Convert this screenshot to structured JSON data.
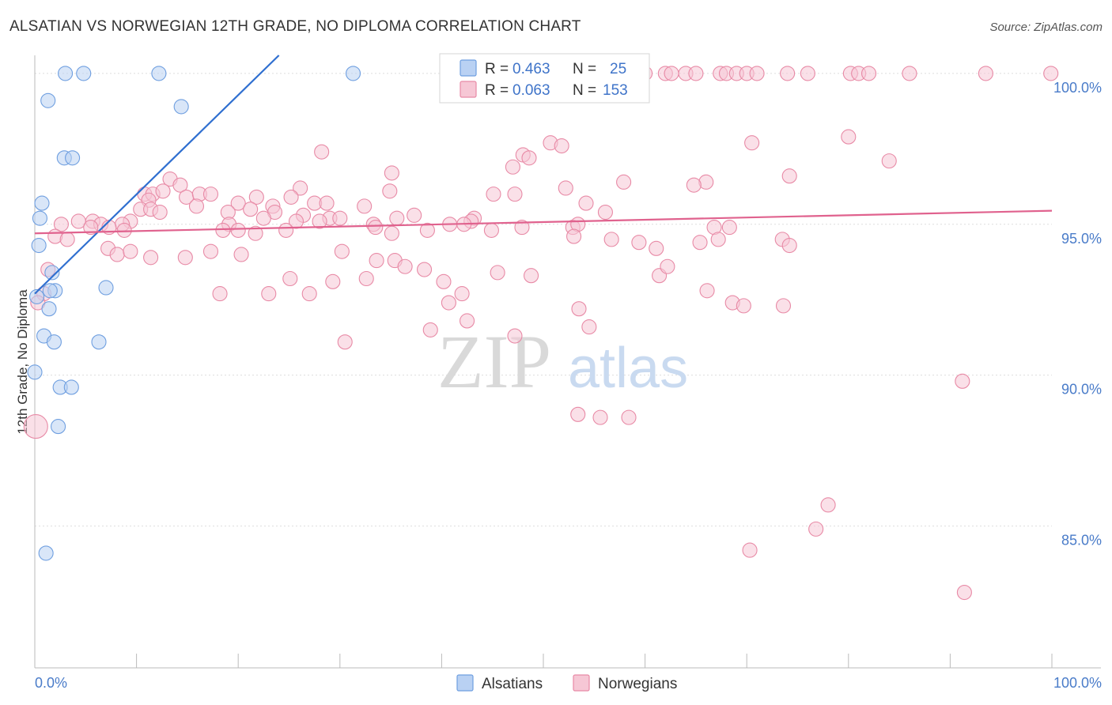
{
  "chart_data": {
    "type": "scatter",
    "title": "ALSATIAN VS NORWEGIAN 12TH GRADE, NO DIPLOMA CORRELATION CHART",
    "source": "Source: ZipAtlas.com",
    "ylabel": "12th Grade, No Diploma",
    "xlim": [
      0,
      100
    ],
    "ylim": [
      80.3,
      100.6
    ],
    "y_ticks": [
      {
        "value": 100,
        "label": "100.0%"
      },
      {
        "value": 95,
        "label": "95.0%"
      },
      {
        "value": 90,
        "label": "90.0%"
      },
      {
        "value": 85,
        "label": "85.0%"
      }
    ],
    "x_ticks": [
      {
        "value": 0,
        "label": "0.0%"
      },
      {
        "value": 100,
        "label": "100.0%"
      }
    ],
    "x_minor_ticks": [
      0,
      10,
      20,
      30,
      40,
      50,
      60,
      70,
      80,
      90,
      100
    ],
    "grid": true,
    "legend": {
      "position": "top-center",
      "rows": [
        {
          "r_label": "R = ",
          "r_value": "0.463",
          "n_label": "N = ",
          "n_value": "25"
        },
        {
          "r_label": "R = ",
          "r_value": "0.063",
          "n_label": "N = ",
          "n_value": "153"
        }
      ]
    },
    "series": [
      {
        "name": "Alsatians",
        "color": "#6f9fe0",
        "fill": "#b9d1f3",
        "line_color": "#2f6fd0",
        "trend": {
          "x0": 0,
          "y0": 92.7,
          "x1": 24.0,
          "y1": 100.6
        },
        "points": [
          [
            3.0,
            100.0
          ],
          [
            4.8,
            100.0
          ],
          [
            12.2,
            100.0
          ],
          [
            31.3,
            100.0
          ],
          [
            1.3,
            99.1
          ],
          [
            14.4,
            98.9
          ],
          [
            2.9,
            97.2
          ],
          [
            3.7,
            97.2
          ],
          [
            0.7,
            95.7
          ],
          [
            0.5,
            95.2
          ],
          [
            0.4,
            94.3
          ],
          [
            1.7,
            93.4
          ],
          [
            7.0,
            92.9
          ],
          [
            2.0,
            92.8
          ],
          [
            1.4,
            92.2
          ],
          [
            0.9,
            91.3
          ],
          [
            1.9,
            91.1
          ],
          [
            6.3,
            91.1
          ],
          [
            0.0,
            90.1
          ],
          [
            2.5,
            89.6
          ],
          [
            3.6,
            89.6
          ],
          [
            2.3,
            88.3
          ],
          [
            1.1,
            84.1
          ],
          [
            1.5,
            92.8
          ],
          [
            0.2,
            92.6
          ]
        ]
      },
      {
        "name": "Norwegians",
        "color": "#e88aa6",
        "fill": "#f6c7d5",
        "line_color": "#e0628e",
        "trend": {
          "x0": 0,
          "y0": 94.7,
          "x1": 100,
          "y1": 95.45
        },
        "points": [
          [
            60.0,
            100.0
          ],
          [
            62.0,
            100.0
          ],
          [
            62.6,
            100.0
          ],
          [
            64.0,
            100.0
          ],
          [
            65.0,
            100.0
          ],
          [
            67.4,
            100.0
          ],
          [
            68.0,
            100.0
          ],
          [
            69.0,
            100.0
          ],
          [
            70.0,
            100.0
          ],
          [
            71.0,
            100.0
          ],
          [
            74.0,
            100.0
          ],
          [
            76.0,
            100.0
          ],
          [
            80.2,
            100.0
          ],
          [
            81.0,
            100.0
          ],
          [
            82.0,
            100.0
          ],
          [
            86.0,
            100.0
          ],
          [
            93.5,
            100.0
          ],
          [
            99.9,
            100.0
          ],
          [
            80.0,
            97.9
          ],
          [
            70.5,
            97.7
          ],
          [
            50.7,
            97.7
          ],
          [
            51.8,
            97.6
          ],
          [
            28.2,
            97.4
          ],
          [
            48.0,
            97.3
          ],
          [
            48.6,
            97.2
          ],
          [
            84.0,
            97.1
          ],
          [
            47.0,
            96.9
          ],
          [
            35.1,
            96.7
          ],
          [
            74.2,
            96.6
          ],
          [
            57.9,
            96.4
          ],
          [
            66.0,
            96.4
          ],
          [
            64.8,
            96.3
          ],
          [
            13.3,
            96.5
          ],
          [
            52.2,
            96.2
          ],
          [
            14.3,
            96.3
          ],
          [
            26.1,
            96.2
          ],
          [
            34.9,
            96.1
          ],
          [
            45.1,
            96.0
          ],
          [
            47.2,
            96.0
          ],
          [
            10.8,
            96.0
          ],
          [
            11.6,
            96.0
          ],
          [
            14.9,
            95.9
          ],
          [
            16.2,
            96.0
          ],
          [
            17.3,
            96.0
          ],
          [
            12.6,
            96.1
          ],
          [
            21.8,
            95.9
          ],
          [
            25.2,
            95.9
          ],
          [
            11.2,
            95.8
          ],
          [
            20.0,
            95.7
          ],
          [
            23.4,
            95.6
          ],
          [
            27.5,
            95.7
          ],
          [
            28.7,
            95.7
          ],
          [
            32.4,
            95.6
          ],
          [
            54.2,
            95.7
          ],
          [
            56.1,
            95.4
          ],
          [
            10.4,
            95.5
          ],
          [
            11.4,
            95.5
          ],
          [
            12.3,
            95.4
          ],
          [
            15.9,
            95.6
          ],
          [
            19.0,
            95.4
          ],
          [
            21.2,
            95.5
          ],
          [
            23.6,
            95.4
          ],
          [
            22.5,
            95.2
          ],
          [
            26.4,
            95.3
          ],
          [
            29.0,
            95.2
          ],
          [
            30.0,
            95.2
          ],
          [
            35.6,
            95.2
          ],
          [
            37.3,
            95.3
          ],
          [
            43.2,
            95.2
          ],
          [
            42.9,
            95.1
          ],
          [
            4.3,
            95.1
          ],
          [
            5.7,
            95.1
          ],
          [
            6.5,
            95.0
          ],
          [
            9.4,
            95.1
          ],
          [
            8.6,
            95.0
          ],
          [
            2.6,
            95.0
          ],
          [
            19.1,
            95.0
          ],
          [
            33.3,
            95.0
          ],
          [
            28.0,
            95.1
          ],
          [
            25.7,
            95.1
          ],
          [
            40.8,
            95.0
          ],
          [
            42.2,
            95.0
          ],
          [
            47.9,
            94.9
          ],
          [
            52.9,
            94.9
          ],
          [
            53.4,
            95.0
          ],
          [
            66.8,
            94.9
          ],
          [
            68.3,
            94.9
          ],
          [
            5.5,
            94.9
          ],
          [
            7.3,
            94.9
          ],
          [
            8.8,
            94.8
          ],
          [
            18.5,
            94.8
          ],
          [
            20.0,
            94.8
          ],
          [
            21.7,
            94.7
          ],
          [
            24.7,
            94.8
          ],
          [
            35.1,
            94.7
          ],
          [
            33.5,
            94.9
          ],
          [
            38.6,
            94.8
          ],
          [
            44.9,
            94.8
          ],
          [
            53.0,
            94.6
          ],
          [
            56.7,
            94.5
          ],
          [
            59.4,
            94.4
          ],
          [
            61.1,
            94.2
          ],
          [
            65.4,
            94.4
          ],
          [
            73.5,
            94.5
          ],
          [
            74.2,
            94.3
          ],
          [
            67.2,
            94.5
          ],
          [
            2.0,
            94.6
          ],
          [
            3.2,
            94.5
          ],
          [
            7.2,
            94.2
          ],
          [
            8.1,
            94.0
          ],
          [
            9.4,
            94.1
          ],
          [
            11.4,
            93.9
          ],
          [
            14.8,
            93.9
          ],
          [
            17.3,
            94.1
          ],
          [
            20.3,
            94.0
          ],
          [
            30.2,
            94.1
          ],
          [
            33.6,
            93.8
          ],
          [
            35.4,
            93.8
          ],
          [
            36.4,
            93.6
          ],
          [
            38.3,
            93.5
          ],
          [
            40.2,
            93.1
          ],
          [
            42.0,
            92.7
          ],
          [
            45.5,
            93.4
          ],
          [
            48.8,
            93.3
          ],
          [
            61.4,
            93.3
          ],
          [
            62.2,
            93.6
          ],
          [
            66.1,
            92.8
          ],
          [
            68.6,
            92.4
          ],
          [
            69.7,
            92.3
          ],
          [
            73.6,
            92.3
          ],
          [
            1.3,
            93.5
          ],
          [
            0.9,
            92.7
          ],
          [
            0.3,
            92.4
          ],
          [
            18.2,
            92.7
          ],
          [
            23.0,
            92.7
          ],
          [
            27.0,
            92.7
          ],
          [
            29.3,
            93.1
          ],
          [
            32.6,
            93.2
          ],
          [
            25.1,
            93.2
          ],
          [
            38.9,
            91.5
          ],
          [
            40.7,
            92.4
          ],
          [
            42.5,
            91.8
          ],
          [
            47.2,
            91.3
          ],
          [
            53.5,
            92.2
          ],
          [
            54.5,
            91.6
          ],
          [
            30.5,
            91.1
          ],
          [
            91.2,
            89.8
          ],
          [
            53.4,
            88.7
          ],
          [
            55.6,
            88.6
          ],
          [
            58.4,
            88.6
          ],
          [
            78.0,
            85.7
          ],
          [
            76.8,
            84.9
          ],
          [
            70.3,
            84.2
          ],
          [
            91.4,
            82.8
          ],
          [
            0.1,
            88.3
          ]
        ]
      }
    ]
  }
}
